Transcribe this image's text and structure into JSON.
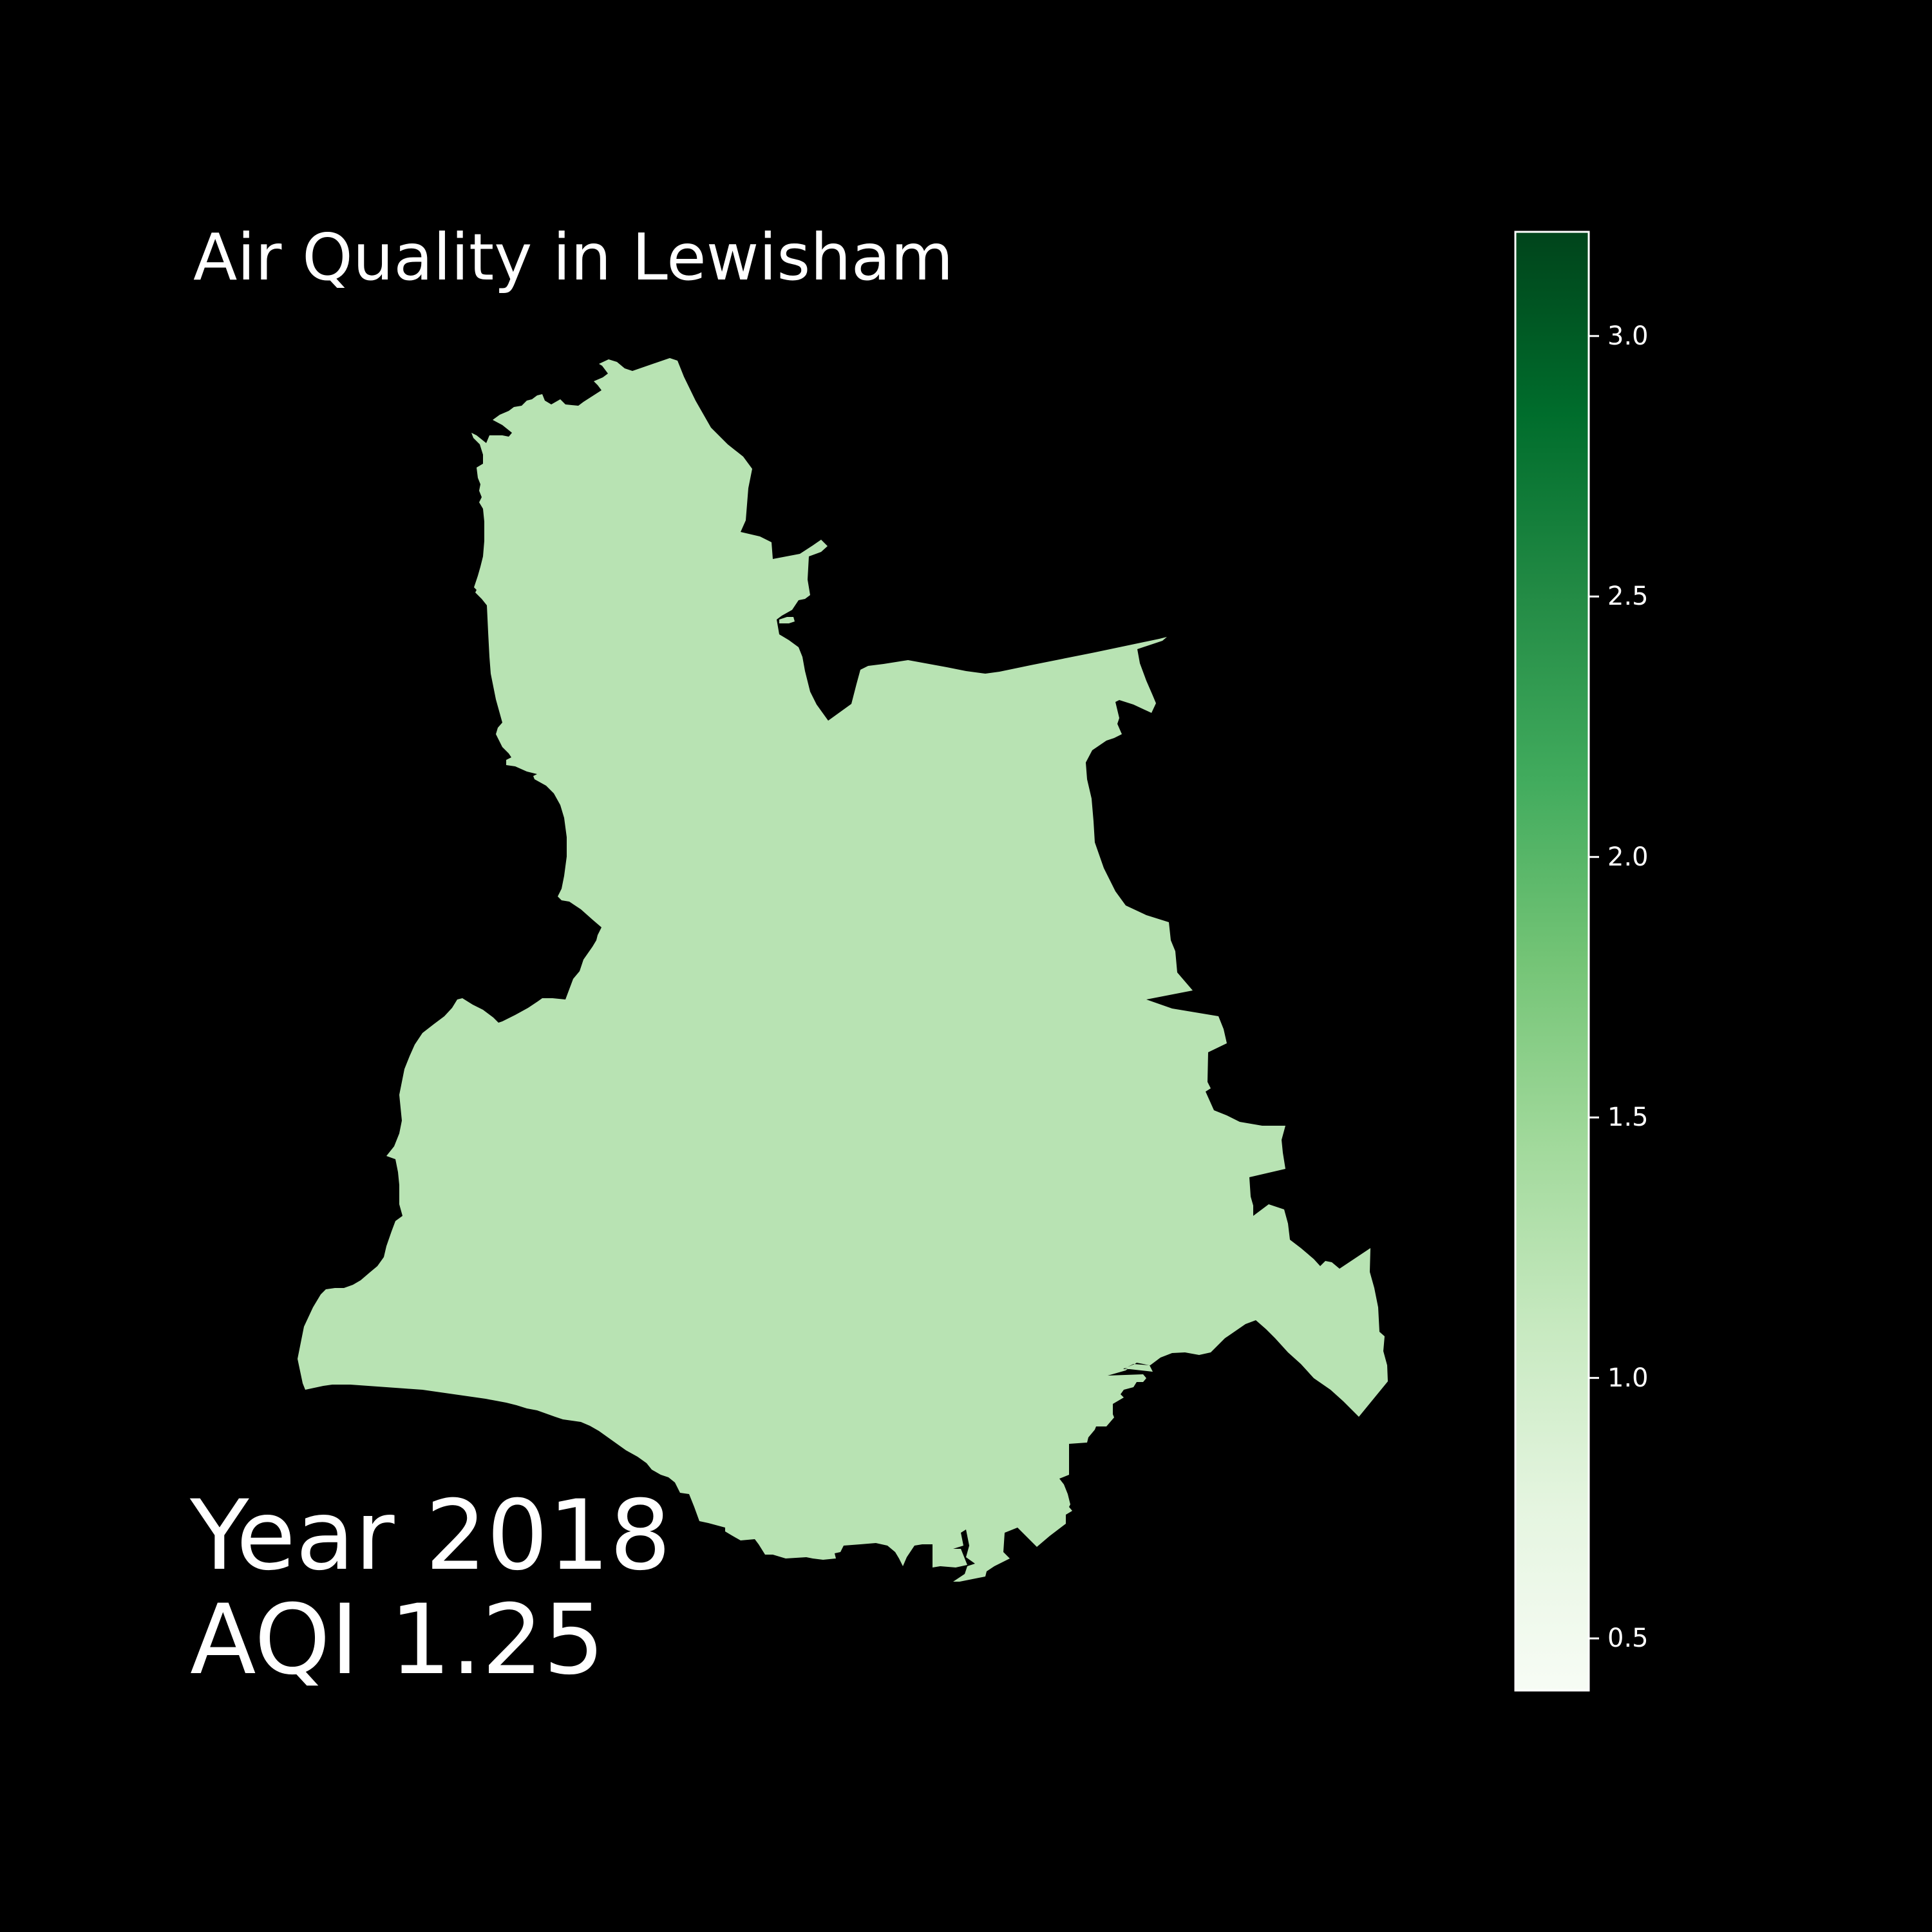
{
  "map": {
    "title": "Air Quality in Lewisham",
    "region": "Lewisham",
    "year_label": "Year 2018",
    "aqi_label": "AQI 1.25",
    "aqi_value": 1.25,
    "background_color": "#000000",
    "text_color": "#ffffff",
    "region_fill_color": "#b8e3b3"
  },
  "colorbar": {
    "colormap": "Greens",
    "min": 0.4,
    "max": 3.2,
    "ticks": [
      {
        "value": 0.5,
        "label": "0.5"
      },
      {
        "value": 1.0,
        "label": "1.0"
      },
      {
        "value": 1.5,
        "label": "1.5"
      },
      {
        "value": 2.0,
        "label": "2.0"
      },
      {
        "value": 2.5,
        "label": "2.5"
      },
      {
        "value": 3.0,
        "label": "3.0"
      }
    ],
    "stops": [
      "#f7fcf5",
      "#e5f5e0",
      "#c7e9c0",
      "#a1d99b",
      "#74c476",
      "#41ab5d",
      "#238b45",
      "#006d2c",
      "#00441b"
    ]
  }
}
